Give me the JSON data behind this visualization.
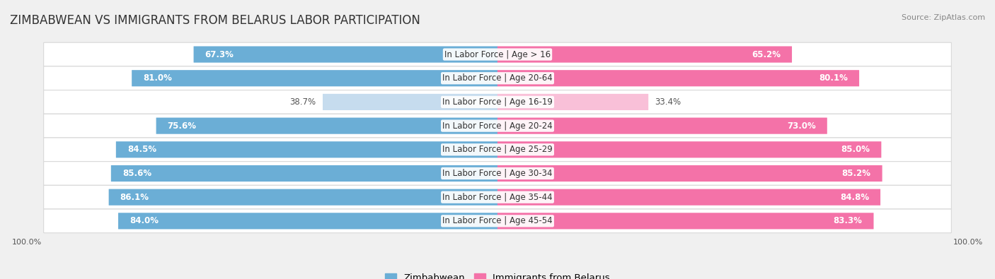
{
  "title": "ZIMBABWEAN VS IMMIGRANTS FROM BELARUS LABOR PARTICIPATION",
  "source": "Source: ZipAtlas.com",
  "categories": [
    "In Labor Force | Age > 16",
    "In Labor Force | Age 20-64",
    "In Labor Force | Age 16-19",
    "In Labor Force | Age 20-24",
    "In Labor Force | Age 25-29",
    "In Labor Force | Age 30-34",
    "In Labor Force | Age 35-44",
    "In Labor Force | Age 45-54"
  ],
  "zimbabwean_values": [
    67.3,
    81.0,
    38.7,
    75.6,
    84.5,
    85.6,
    86.1,
    84.0
  ],
  "belarus_values": [
    65.2,
    80.1,
    33.4,
    73.0,
    85.0,
    85.2,
    84.8,
    83.3
  ],
  "zimbabwean_color": "#6BAED6",
  "zimbabwean_color_light": "#C6DCEE",
  "belarus_color": "#F472A8",
  "belarus_color_light": "#F9C0D8",
  "max_value": 100.0,
  "background_color": "#f0f0f0",
  "row_bg_color": "#ffffff",
  "row_border_color": "#d8d8d8",
  "title_fontsize": 12,
  "label_fontsize": 8.5,
  "value_fontsize": 8.5,
  "legend_fontsize": 9.5
}
